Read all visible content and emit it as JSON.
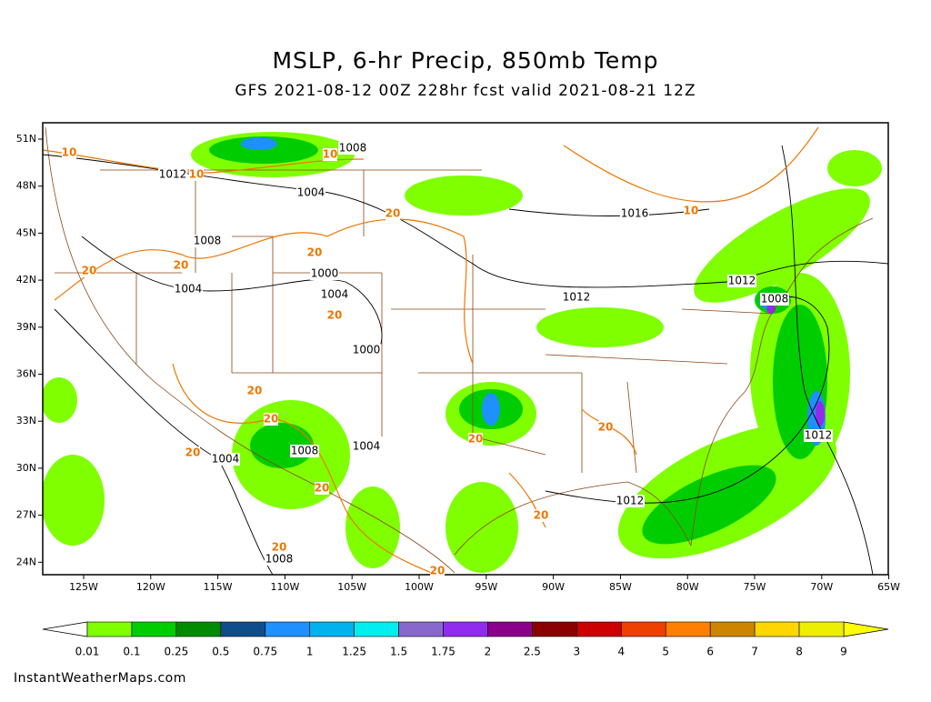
{
  "header": {
    "title": "MSLP, 6-hr Precip, 850mb Temp",
    "subtitle": "GFS 2021-08-12 00Z 228hr fcst valid 2021-08-21 12Z"
  },
  "map": {
    "lon_labels": [
      "125W",
      "120W",
      "115W",
      "110W",
      "105W",
      "100W",
      "95W",
      "90W",
      "85W",
      "80W",
      "75W",
      "70W",
      "65W"
    ],
    "lat_labels": [
      "51N",
      "48N",
      "45N",
      "42N",
      "39N",
      "36N",
      "33N",
      "30N",
      "27N",
      "24N"
    ],
    "isobar_labels": [
      "1012",
      "1008",
      "1004",
      "1016",
      "1008",
      "1004",
      "1000",
      "1004",
      "1012",
      "1012",
      "1008",
      "1000",
      "1008",
      "1004",
      "1012",
      "1004",
      "1012",
      "1008"
    ],
    "isotherm_labels": [
      "10",
      "10",
      "10",
      "20",
      "10",
      "20",
      "20",
      "20",
      "20",
      "20",
      "20",
      "20",
      "20",
      "20",
      "20",
      "20",
      "20",
      "20"
    ]
  },
  "legend": {
    "colors": [
      "#7fff00",
      "#00cd00",
      "#008b00",
      "#104e8b",
      "#1e90ff",
      "#00b2ee",
      "#00eeee",
      "#8968cd",
      "#912cee",
      "#8b008b",
      "#8b0000",
      "#cd0000",
      "#ee4000",
      "#ff7f00",
      "#cd8500",
      "#ffd700",
      "#eeee00"
    ],
    "labels": [
      "0.01",
      "0.1",
      "0.25",
      "0.5",
      "0.75",
      "1",
      "1.25",
      "1.5",
      "1.75",
      "2",
      "2.5",
      "3",
      "4",
      "5",
      "6",
      "7",
      "8",
      "9"
    ]
  },
  "footer": "InstantWeatherMaps.com"
}
